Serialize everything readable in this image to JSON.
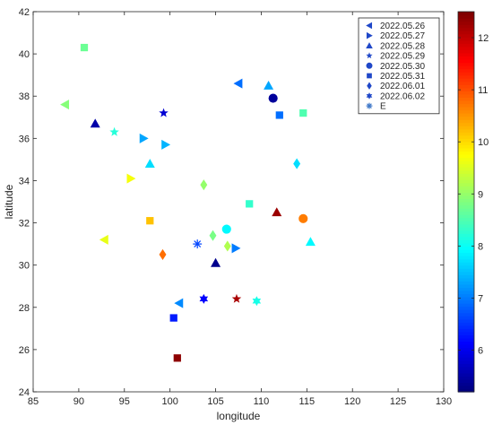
{
  "chart_data": {
    "type": "scatter",
    "title": "",
    "xlabel": "longitude",
    "ylabel": "latitude",
    "xlim": [
      85,
      130
    ],
    "ylim": [
      24,
      42
    ],
    "x_ticks": [
      "85",
      "90",
      "95",
      "100",
      "105",
      "110",
      "115",
      "120",
      "125",
      "130"
    ],
    "y_ticks": [
      "24",
      "26",
      "28",
      "30",
      "32",
      "34",
      "36",
      "38",
      "40",
      "42"
    ],
    "grid": false,
    "legend_position": "top-right",
    "colorbar": {
      "colormap": "jet",
      "range": [
        5.2,
        12.5
      ],
      "ticks": [
        "6",
        "7",
        "8",
        "9",
        "10",
        "11",
        "12"
      ]
    },
    "series": [
      {
        "name": "2022.05.26",
        "marker": "triangle-left",
        "points": [
          {
            "x": 88.5,
            "y": 37.6,
            "v": 8.9
          },
          {
            "x": 92.8,
            "y": 31.2,
            "v": 9.6
          },
          {
            "x": 101.0,
            "y": 28.2,
            "v": 7.1
          },
          {
            "x": 107.5,
            "y": 38.6,
            "v": 6.9
          }
        ]
      },
      {
        "name": "2022.05.27",
        "marker": "triangle-right",
        "points": [
          {
            "x": 97.1,
            "y": 36.0,
            "v": 7.3
          },
          {
            "x": 99.5,
            "y": 35.7,
            "v": 7.4
          },
          {
            "x": 95.7,
            "y": 34.1,
            "v": 9.7
          },
          {
            "x": 107.2,
            "y": 30.8,
            "v": 7.0
          }
        ]
      },
      {
        "name": "2022.05.28",
        "marker": "triangle-up",
        "points": [
          {
            "x": 91.8,
            "y": 36.7,
            "v": 5.5
          },
          {
            "x": 97.8,
            "y": 34.8,
            "v": 7.7
          },
          {
            "x": 110.8,
            "y": 38.5,
            "v": 7.3
          },
          {
            "x": 105.0,
            "y": 30.1,
            "v": 5.3
          },
          {
            "x": 111.7,
            "y": 32.5,
            "v": 12.3
          },
          {
            "x": 115.4,
            "y": 31.1,
            "v": 7.9
          }
        ]
      },
      {
        "name": "2022.05.29",
        "marker": "star",
        "points": [
          {
            "x": 99.3,
            "y": 37.2,
            "v": 5.8
          },
          {
            "x": 93.9,
            "y": 36.3,
            "v": 8.2
          },
          {
            "x": 107.3,
            "y": 28.4,
            "v": 12.2
          }
        ]
      },
      {
        "name": "2022.05.30",
        "marker": "circle",
        "points": [
          {
            "x": 111.3,
            "y": 37.9,
            "v": 5.4
          },
          {
            "x": 106.2,
            "y": 31.7,
            "v": 7.9
          },
          {
            "x": 114.6,
            "y": 32.2,
            "v": 10.7
          }
        ]
      },
      {
        "name": "2022.05.31",
        "marker": "square",
        "points": [
          {
            "x": 90.6,
            "y": 40.3,
            "v": 8.7
          },
          {
            "x": 112.0,
            "y": 37.1,
            "v": 6.9
          },
          {
            "x": 114.6,
            "y": 37.2,
            "v": 8.5
          },
          {
            "x": 108.7,
            "y": 32.9,
            "v": 8.3
          },
          {
            "x": 97.8,
            "y": 32.1,
            "v": 10.2
          },
          {
            "x": 100.4,
            "y": 27.5,
            "v": 6.3
          },
          {
            "x": 100.8,
            "y": 25.6,
            "v": 12.4
          }
        ]
      },
      {
        "name": "2022.06.01",
        "marker": "diamond",
        "points": [
          {
            "x": 113.9,
            "y": 34.8,
            "v": 7.7
          },
          {
            "x": 103.7,
            "y": 33.8,
            "v": 9.0
          },
          {
            "x": 104.7,
            "y": 31.4,
            "v": 8.8
          },
          {
            "x": 106.3,
            "y": 30.9,
            "v": 9.2
          },
          {
            "x": 99.2,
            "y": 30.5,
            "v": 10.8
          }
        ]
      },
      {
        "name": "2022.06.02",
        "marker": "hexagram",
        "points": [
          {
            "x": 103.7,
            "y": 28.4,
            "v": 6.1
          },
          {
            "x": 109.5,
            "y": 28.3,
            "v": 8.1
          }
        ]
      },
      {
        "name": "E",
        "marker": "asterisk",
        "points": [
          {
            "x": 103.0,
            "y": 31.0,
            "v": 6.6
          }
        ]
      }
    ]
  }
}
